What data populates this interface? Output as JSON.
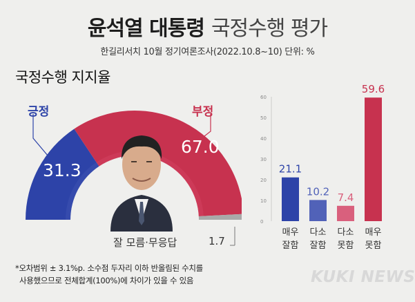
{
  "header": {
    "title_bold": "윤석열 대통령",
    "title_light": "국정수행 평가",
    "subtitle": "한길리서치 10월 정기여론조사(2022.10.8~10) 단위: %"
  },
  "section_title": "국정수행 지지율",
  "colors": {
    "positive": "#2d43a8",
    "negative": "#c7324f",
    "undecided": "#a9a9a9",
    "positive_light": "#3e52b0",
    "negative_light": "#d14261",
    "bar_very_good": "#2d43a8",
    "bar_somewhat_good": "#5162b8",
    "bar_somewhat_bad": "#d9607d",
    "bar_very_bad": "#c7324f"
  },
  "chart_data": [
    {
      "type": "pie",
      "title": "국정수행 지지율",
      "slices": [
        {
          "label": "긍정",
          "value": 31.3
        },
        {
          "label": "부정",
          "value": 67.0
        },
        {
          "label": "잘 모름·무응답",
          "value": 1.7
        }
      ]
    },
    {
      "type": "bar",
      "categories": [
        "매우 잘함",
        "다소 잘함",
        "다소 못함",
        "매우 못함"
      ],
      "values": [
        21.1,
        10.2,
        7.4,
        59.6
      ],
      "ylim": [
        0,
        60
      ],
      "yticks": [
        0,
        10,
        20,
        30,
        40,
        50,
        60
      ]
    }
  ],
  "gauge_labels": {
    "positive": "긍정",
    "negative": "부정",
    "positive_value": "31.3",
    "negative_value": "67.0",
    "undecided": "잘 모름·무응답",
    "undecided_value": "1.7"
  },
  "bars": {
    "labels": [
      [
        "매우",
        "잘함"
      ],
      [
        "다소",
        "잘함"
      ],
      [
        "다소",
        "못함"
      ],
      [
        "매우",
        "못함"
      ]
    ],
    "value_labels": [
      "21.1",
      "10.2",
      "7.4",
      "59.6"
    ]
  },
  "footnote": {
    "line1": "*오차범위 ± 3.1%p. 소수점 두자리 이하 반올림된 수치를",
    "line2": "사용했으므로 전체합계(100%)에 차이가 있을 수 있음"
  },
  "brand": "KUKI NEWS"
}
